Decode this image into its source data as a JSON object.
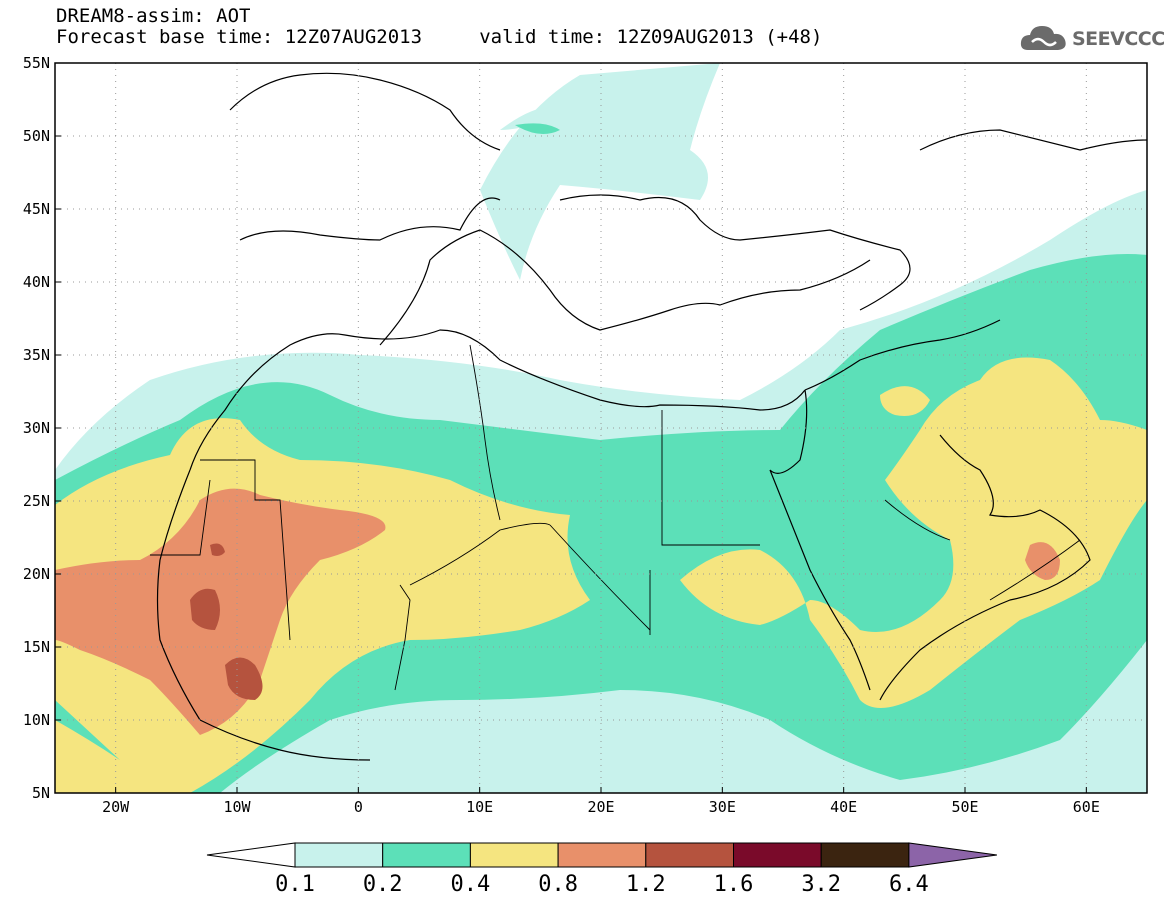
{
  "header": {
    "title_line1": "DREAM8-assim: AOT",
    "title_line2": "Forecast base time: 12Z07AUG2013     valid time: 12Z09AUG2013 (+48)",
    "logo_text": "SEEVCCC",
    "logo_icon": "cloud-logo-icon"
  },
  "map": {
    "projection": "lat-lon",
    "lon_range": [
      -25,
      65
    ],
    "lat_range": [
      5,
      55
    ],
    "grid": "dotted",
    "lat_ticks": [
      {
        "value": 55,
        "label": "55N"
      },
      {
        "value": 50,
        "label": "50N"
      },
      {
        "value": 45,
        "label": "45N"
      },
      {
        "value": 40,
        "label": "40N"
      },
      {
        "value": 35,
        "label": "35N"
      },
      {
        "value": 30,
        "label": "30N"
      },
      {
        "value": 25,
        "label": "25N"
      },
      {
        "value": 20,
        "label": "20N"
      },
      {
        "value": 15,
        "label": "15N"
      },
      {
        "value": 10,
        "label": "10N"
      },
      {
        "value": 5,
        "label": "5N"
      }
    ],
    "lon_ticks": [
      {
        "value": -20,
        "label": "20W"
      },
      {
        "value": -10,
        "label": "10W"
      },
      {
        "value": 0,
        "label": "0"
      },
      {
        "value": 10,
        "label": "10E"
      },
      {
        "value": 20,
        "label": "20E"
      },
      {
        "value": 30,
        "label": "30E"
      },
      {
        "value": 40,
        "label": "40E"
      },
      {
        "value": 50,
        "label": "50E"
      },
      {
        "value": 60,
        "label": "60E"
      }
    ]
  },
  "colorbar": {
    "labels": [
      "0.1",
      "0.2",
      "0.4",
      "0.8",
      "1.2",
      "1.6",
      "3.2",
      "6.4"
    ],
    "colors": [
      "#ffffff",
      "#c8f2ec",
      "#5ce0b8",
      "#f5e580",
      "#e8906a",
      "#b5533e",
      "#7a0a2a",
      "#3b2410",
      "#8c64a8"
    ]
  }
}
